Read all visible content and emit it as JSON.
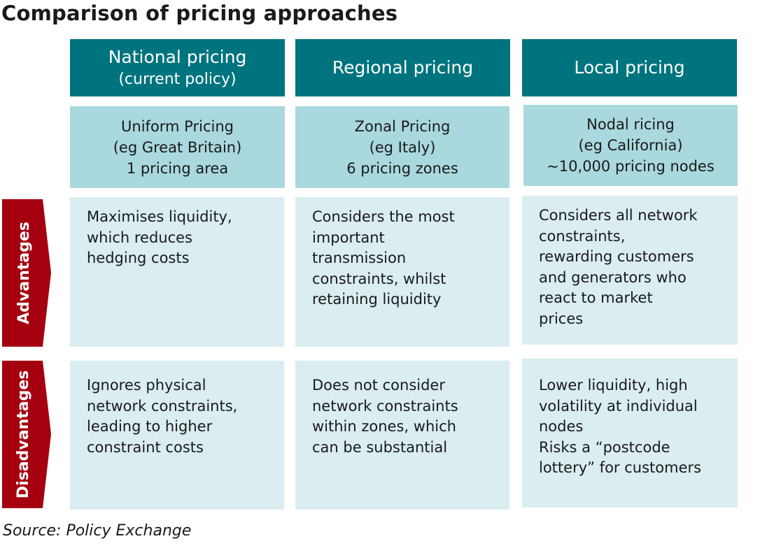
{
  "title": "Comparison of pricing approaches",
  "colors": {
    "header_bg": "#00747e",
    "scheme_bg": "#a9d8de",
    "cell_bg": "#daedf0",
    "row_label_bg": "#a4000f"
  },
  "columns": [
    {
      "header": {
        "main": "National pricing",
        "sub": "(current policy)"
      },
      "scheme": [
        "Uniform Pricing",
        "(eg Great Britain)",
        "1 pricing area"
      ],
      "advantages": [
        "Maximises liquidity,",
        "which reduces",
        "hedging costs"
      ],
      "disadvantages": [
        "Ignores physical",
        "network constraints,",
        "leading to higher",
        "constraint costs"
      ]
    },
    {
      "header": {
        "main": "Regional pricing",
        "sub": ""
      },
      "scheme": [
        "Zonal Pricing",
        "(eg Italy)",
        "6 pricing zones"
      ],
      "advantages": [
        "Considers the most",
        "important",
        "transmission",
        "constraints, whilst",
        "retaining liquidity"
      ],
      "disadvantages": [
        "Does not consider",
        "network constraints",
        "within zones, which",
        "can be substantial"
      ]
    },
    {
      "header": {
        "main": "Local pricing",
        "sub": ""
      },
      "scheme": [
        "Nodal ricing",
        "(eg California)",
        "~10,000 pricing nodes"
      ],
      "advantages": [
        "Considers all network",
        "constraints,",
        "rewarding customers",
        "and generators who",
        "react to market",
        "prices"
      ],
      "disadvantages": [
        "Lower liquidity, high",
        "volatility at individual",
        "nodes",
        "Risks a “postcode",
        "lottery” for customers"
      ]
    }
  ],
  "row_labels": {
    "advantages": "Advantages",
    "disadvantages": "Disadvantages"
  },
  "source": "Source: Policy Exchange"
}
